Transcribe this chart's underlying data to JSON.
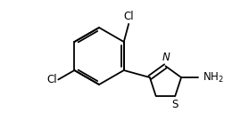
{
  "background_color": "#ffffff",
  "line_color": "#000000",
  "line_width": 1.3,
  "font_size": 8.5,
  "cl1_label": "Cl",
  "cl2_label": "Cl",
  "n_label": "N",
  "s_label": "S",
  "nh2_label": "NH$_2$",
  "bx": 3.8,
  "by": 3.4,
  "br": 1.35,
  "hex_angles": [
    90,
    30,
    -30,
    -90,
    -150,
    150
  ],
  "th_r": 0.82,
  "th_angles": [
    162,
    234,
    306,
    18,
    90
  ]
}
